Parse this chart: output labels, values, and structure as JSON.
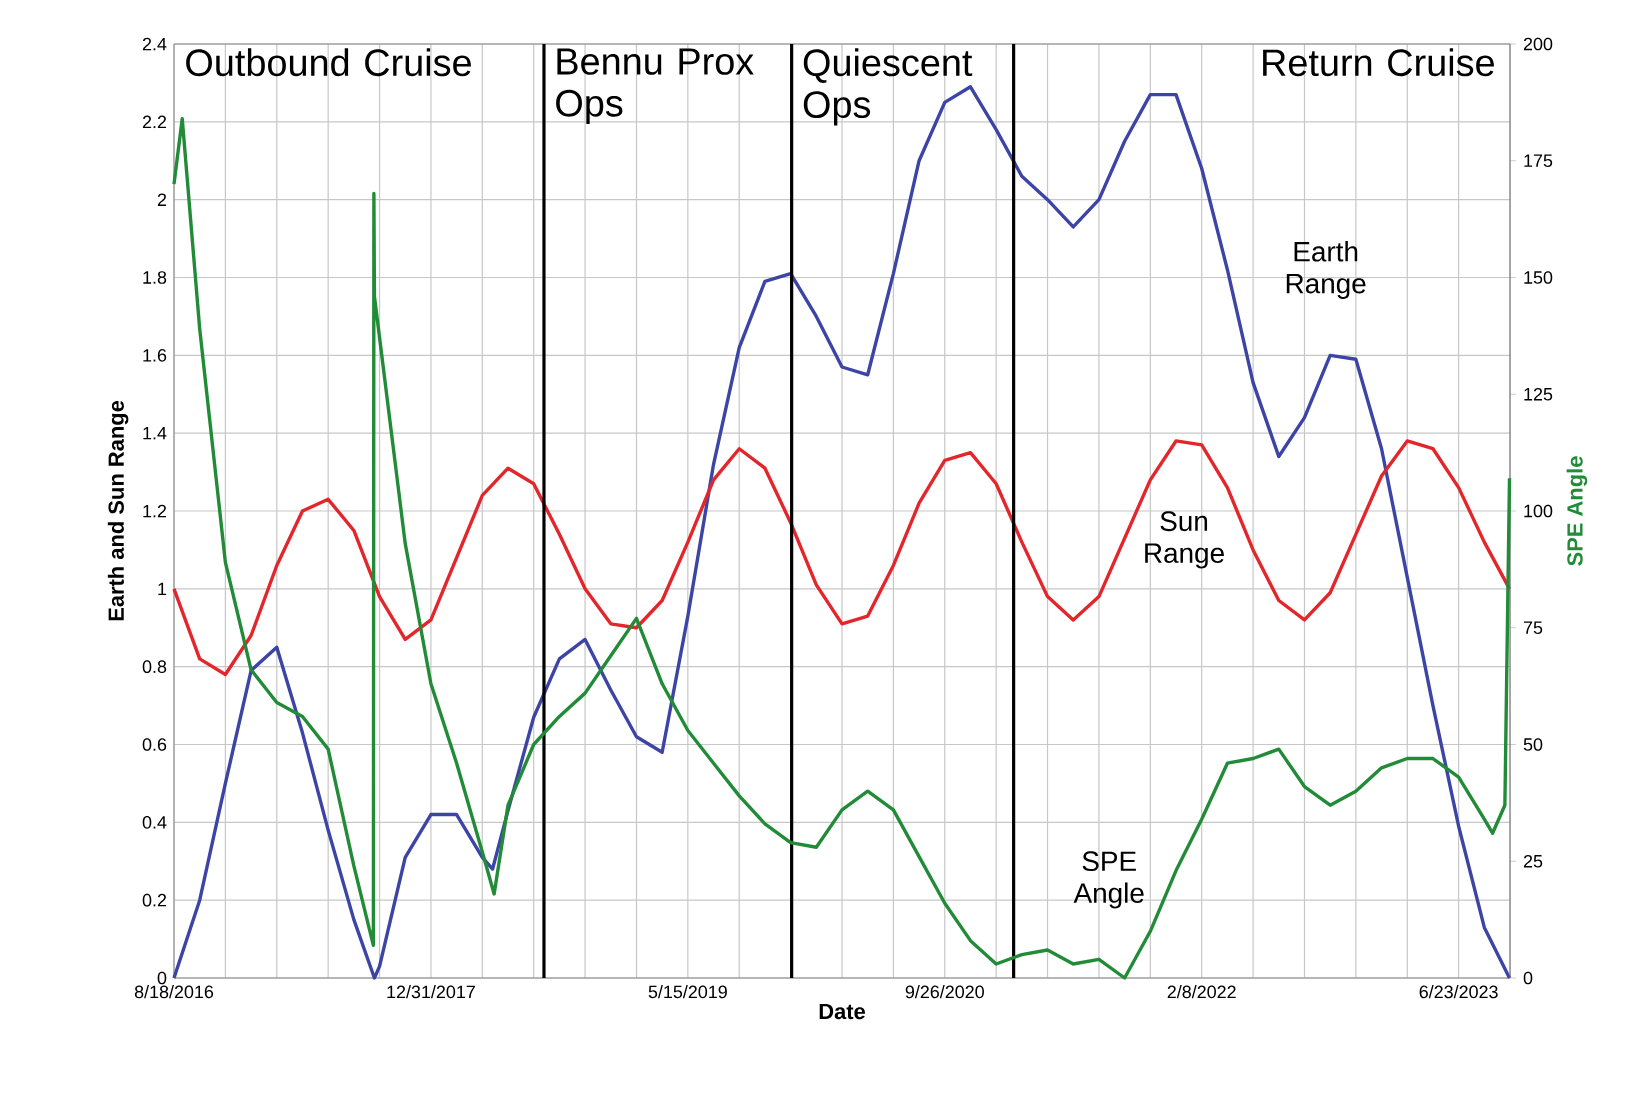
{
  "chart_data": {
    "type": "line",
    "xlabel": "Date",
    "ylabel": "Earth and Sun Range",
    "y2label": "SPE Angle",
    "xlim": [
      "2016-08-18",
      "2023-10-01"
    ],
    "ylim": [
      0,
      2.4
    ],
    "y2lim": [
      0,
      200
    ],
    "xticks": [
      {
        "value": "2016-08-18",
        "label": "8/18/2016"
      },
      {
        "value": "2016-11-26",
        "label": null
      },
      {
        "value": "2017-03-06",
        "label": null
      },
      {
        "value": "2017-06-14",
        "label": null
      },
      {
        "value": "2017-09-22",
        "label": null
      },
      {
        "value": "2017-12-31",
        "label": "12/31/2017"
      },
      {
        "value": "2018-04-10",
        "label": null
      },
      {
        "value": "2018-07-19",
        "label": null
      },
      {
        "value": "2018-10-27",
        "label": null
      },
      {
        "value": "2019-02-04",
        "label": null
      },
      {
        "value": "2019-05-15",
        "label": "5/15/2019"
      },
      {
        "value": "2019-08-23",
        "label": null
      },
      {
        "value": "2019-12-01",
        "label": null
      },
      {
        "value": "2020-03-10",
        "label": null
      },
      {
        "value": "2020-06-18",
        "label": null
      },
      {
        "value": "2020-09-26",
        "label": "9/26/2020"
      },
      {
        "value": "2021-01-04",
        "label": null
      },
      {
        "value": "2021-04-14",
        "label": null
      },
      {
        "value": "2021-07-23",
        "label": null
      },
      {
        "value": "2021-10-31",
        "label": null
      },
      {
        "value": "2022-02-08",
        "label": "2/8/2022"
      },
      {
        "value": "2022-05-19",
        "label": null
      },
      {
        "value": "2022-08-27",
        "label": null
      },
      {
        "value": "2022-12-05",
        "label": null
      },
      {
        "value": "2023-03-15",
        "label": null
      },
      {
        "value": "2023-06-23",
        "label": "6/23/2023"
      }
    ],
    "yticks": [
      0,
      0.2,
      0.4,
      0.6,
      0.8,
      1,
      1.2,
      1.4,
      1.6,
      1.8,
      2,
      2.2,
      2.4
    ],
    "y2ticks": [
      0,
      25,
      50,
      75,
      100,
      125,
      150,
      175,
      200
    ],
    "grid": true,
    "marker": "none",
    "line_style": "solid",
    "ref_lines": [
      {
        "axis": "x",
        "value": "2018-08-08"
      },
      {
        "axis": "x",
        "value": "2019-12-03"
      },
      {
        "axis": "x",
        "value": "2021-02-07"
      }
    ],
    "annotations": [
      "Outbound Cruise",
      "Bennu Prox Ops",
      "Quiescent Ops",
      "Return Cruise"
    ],
    "series": [
      {
        "name": "Earth Range",
        "color": "#3c45a5",
        "x": [
          "2016-08-18",
          "2016-10-07",
          "2016-11-26",
          "2017-01-15",
          "2017-03-06",
          "2017-04-25",
          "2017-06-14",
          "2017-08-03",
          "2017-09-12",
          "2017-09-22",
          "2017-11-11",
          "2017-12-31",
          "2018-02-19",
          "2018-04-10",
          "2018-04-30",
          "2018-05-30",
          "2018-07-19",
          "2018-09-07",
          "2018-10-27",
          "2018-12-16",
          "2019-02-04",
          "2019-03-26",
          "2019-05-15",
          "2019-07-04",
          "2019-08-23",
          "2019-10-12",
          "2019-12-01",
          "2020-01-20",
          "2020-03-10",
          "2020-04-29",
          "2020-06-18",
          "2020-08-07",
          "2020-09-26",
          "2020-11-15",
          "2021-01-04",
          "2021-02-23",
          "2021-04-14",
          "2021-06-03",
          "2021-07-23",
          "2021-09-11",
          "2021-10-31",
          "2021-12-20",
          "2022-02-08",
          "2022-03-30",
          "2022-05-19",
          "2022-07-08",
          "2022-08-27",
          "2022-10-16",
          "2022-12-05",
          "2023-01-24",
          "2023-03-15",
          "2023-05-04",
          "2023-06-23",
          "2023-08-12",
          "2023-09-30"
        ],
        "values": [
          0,
          0.2,
          0.5,
          0.79,
          0.85,
          0.63,
          0.38,
          0.15,
          0,
          0.03,
          0.31,
          0.42,
          0.42,
          0.31,
          0.28,
          0.43,
          0.67,
          0.82,
          0.87,
          0.74,
          0.62,
          0.58,
          0.93,
          1.32,
          1.62,
          1.79,
          1.81,
          1.7,
          1.57,
          1.55,
          1.81,
          2.1,
          2.25,
          2.29,
          2.18,
          2.06,
          2.0,
          1.93,
          2.0,
          2.15,
          2.27,
          2.27,
          2.08,
          1.82,
          1.53,
          1.34,
          1.44,
          1.6,
          1.59,
          1.36,
          1.03,
          0.7,
          0.39,
          0.13,
          0
        ]
      },
      {
        "name": "Sun Range",
        "color": "#e3262b",
        "x": [
          "2016-08-18",
          "2016-10-07",
          "2016-11-26",
          "2017-01-15",
          "2017-03-06",
          "2017-04-25",
          "2017-06-14",
          "2017-08-03",
          "2017-09-22",
          "2017-11-11",
          "2017-12-31",
          "2018-02-19",
          "2018-04-10",
          "2018-05-30",
          "2018-07-19",
          "2018-09-07",
          "2018-10-27",
          "2018-12-16",
          "2019-02-04",
          "2019-03-26",
          "2019-05-15",
          "2019-07-04",
          "2019-08-23",
          "2019-10-12",
          "2019-12-01",
          "2020-01-20",
          "2020-03-10",
          "2020-04-29",
          "2020-06-18",
          "2020-08-07",
          "2020-09-26",
          "2020-11-15",
          "2021-01-04",
          "2021-02-23",
          "2021-04-14",
          "2021-06-03",
          "2021-07-23",
          "2021-09-11",
          "2021-10-31",
          "2021-12-20",
          "2022-02-08",
          "2022-03-30",
          "2022-05-19",
          "2022-07-08",
          "2022-08-27",
          "2022-10-16",
          "2022-12-05",
          "2023-01-24",
          "2023-03-15",
          "2023-05-04",
          "2023-06-23",
          "2023-08-12",
          "2023-09-30"
        ],
        "values": [
          1.0,
          0.82,
          0.78,
          0.88,
          1.06,
          1.2,
          1.23,
          1.15,
          0.98,
          0.87,
          0.92,
          1.08,
          1.24,
          1.31,
          1.27,
          1.14,
          1.0,
          0.91,
          0.9,
          0.97,
          1.12,
          1.28,
          1.36,
          1.31,
          1.17,
          1.01,
          0.91,
          0.93,
          1.06,
          1.22,
          1.33,
          1.35,
          1.27,
          1.12,
          0.98,
          0.92,
          0.98,
          1.13,
          1.28,
          1.38,
          1.37,
          1.26,
          1.1,
          0.97,
          0.92,
          0.99,
          1.14,
          1.29,
          1.38,
          1.36,
          1.26,
          1.12,
          1.0
        ]
      },
      {
        "name": "SPE Angle",
        "color": "#218b38",
        "axis": "y2",
        "x": [
          "2016-08-18",
          "2016-09-03",
          "2016-10-07",
          "2016-11-26",
          "2017-01-15",
          "2017-03-06",
          "2017-04-25",
          "2017-06-14",
          "2017-08-03",
          "2017-09-10",
          "2017-09-11",
          "2017-09-12",
          "2017-11-11",
          "2017-12-31",
          "2018-02-19",
          "2018-04-10",
          "2018-05-03",
          "2018-05-30",
          "2018-07-19",
          "2018-09-07",
          "2018-10-27",
          "2018-12-16",
          "2019-02-04",
          "2019-03-26",
          "2019-05-15",
          "2019-07-04",
          "2019-08-23",
          "2019-10-12",
          "2019-12-01",
          "2020-01-20",
          "2020-03-10",
          "2020-04-29",
          "2020-06-18",
          "2020-08-07",
          "2020-09-26",
          "2020-11-15",
          "2021-01-04",
          "2021-02-23",
          "2021-04-14",
          "2021-06-03",
          "2021-07-23",
          "2021-09-11",
          "2021-10-31",
          "2021-12-20",
          "2022-02-08",
          "2022-03-30",
          "2022-05-19",
          "2022-07-08",
          "2022-08-27",
          "2022-10-16",
          "2022-12-05",
          "2023-01-24",
          "2023-03-15",
          "2023-05-04",
          "2023-06-23",
          "2023-08-12",
          "2023-08-28",
          "2023-09-21",
          "2023-09-30"
        ],
        "values": [
          170,
          184,
          139,
          89,
          66,
          59,
          56,
          49,
          24,
          7,
          168,
          146,
          93,
          63,
          46,
          27,
          18,
          37,
          50,
          56,
          61,
          69,
          77,
          63,
          53,
          46,
          39,
          33,
          29,
          28,
          36,
          40,
          36,
          26,
          16,
          8,
          3,
          5,
          6,
          3,
          4,
          0,
          10,
          23,
          34,
          46,
          47,
          49,
          41,
          37,
          40,
          45,
          47,
          47,
          43,
          34,
          31,
          37,
          107
        ]
      }
    ]
  }
}
